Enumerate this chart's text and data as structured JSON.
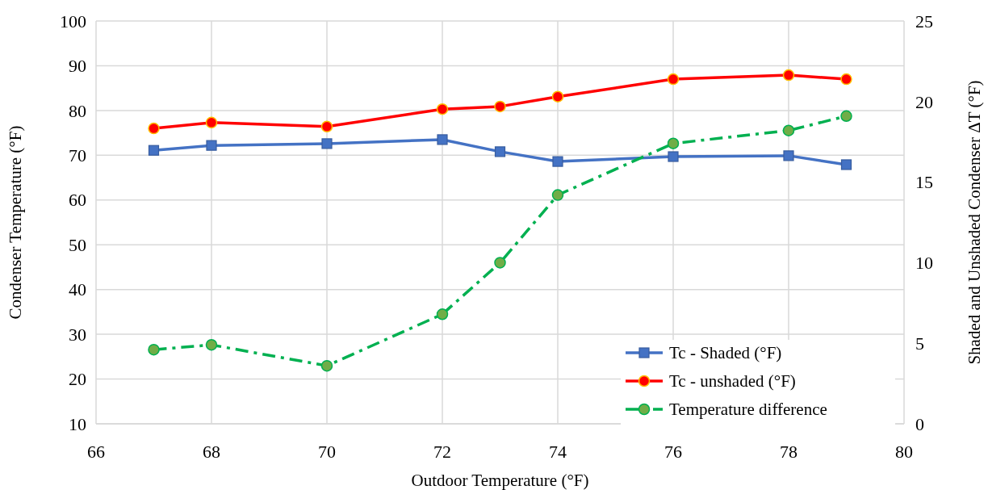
{
  "chart_data": {
    "type": "line",
    "xlabel": "Outdoor Temperature (°F)",
    "ylabel": "Condenser Temperature (°F)",
    "y2label": "Shaded and Unshaded Condenser ΔT (°F)",
    "x": [
      67,
      68,
      70,
      72,
      73,
      74,
      76,
      78,
      79
    ],
    "series": [
      {
        "name": "Tc - Shaded (°F)",
        "color": "#4472c4",
        "marker": "square",
        "line_style": "solid",
        "values": [
          71.1,
          72.2,
          72.6,
          73.5,
          70.8,
          68.6,
          69.7,
          69.9,
          67.9
        ]
      },
      {
        "name": "Tc - unshaded (°F)",
        "color": "#ff0000",
        "marker": "circle",
        "line_style": "solid",
        "values": [
          76.0,
          77.3,
          76.4,
          80.3,
          80.9,
          83.1,
          87.0,
          87.9,
          87.0
        ]
      },
      {
        "name": "Temperature difference",
        "color": "#00b050",
        "marker": "circle",
        "line_style": "dashed",
        "axis": "y2",
        "values": [
          4.6,
          4.9,
          3.6,
          6.8,
          10.0,
          14.2,
          17.4,
          18.2,
          19.1
        ]
      }
    ],
    "xlim": [
      66,
      80
    ],
    "xticks": [
      66,
      68,
      70,
      72,
      74,
      76,
      78,
      80
    ],
    "ylim": [
      10,
      100
    ],
    "yticks": [
      10,
      20,
      30,
      40,
      50,
      60,
      70,
      80,
      90,
      100
    ],
    "y2lim": [
      0,
      25
    ],
    "y2ticks": [
      0,
      5,
      10,
      15,
      20,
      25
    ],
    "grid": true,
    "legend": "bottom right"
  }
}
